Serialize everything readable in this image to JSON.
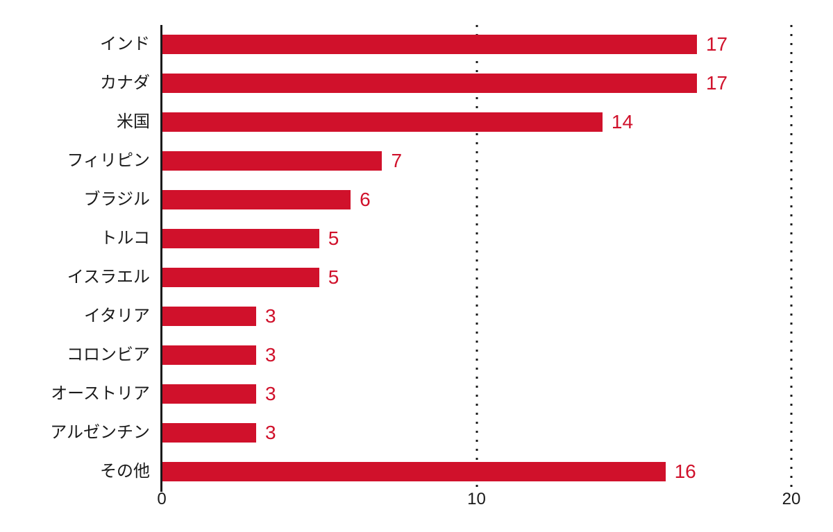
{
  "chart_data": {
    "type": "bar",
    "orientation": "horizontal",
    "title": "",
    "categories": [
      "インド",
      "カナダ",
      "米国",
      "フィリピン",
      "ブラジル",
      "トルコ",
      "イスラエル",
      "イタリア",
      "コロンビア",
      "オーストリア",
      "アルゼンチン",
      "その他"
    ],
    "values": [
      17,
      17,
      14,
      7,
      6,
      5,
      5,
      3,
      3,
      3,
      3,
      16
    ],
    "value_labels": [
      "17",
      "17",
      "14",
      "7",
      "6",
      "5",
      "5",
      "3",
      "3",
      "3",
      "3",
      "16"
    ],
    "xlabel": "",
    "ylabel": "",
    "xlim": [
      0,
      20
    ],
    "x_ticks": [
      {
        "value": 0,
        "label": "0"
      },
      {
        "value": 10,
        "label": "10"
      },
      {
        "value": 20,
        "label": "20"
      }
    ],
    "gridline_values": [
      10,
      20
    ],
    "grid_style": "dotted-vertical",
    "legend": "none",
    "colors": {
      "bar": "#d0112b",
      "value_label": "#d0112b",
      "category_label": "#1a1a1a",
      "axis_line": "#1a1a1a",
      "tick_label": "#1a1a1a",
      "grid_dot": "#1b1b1b",
      "background": "#ffffff"
    }
  }
}
